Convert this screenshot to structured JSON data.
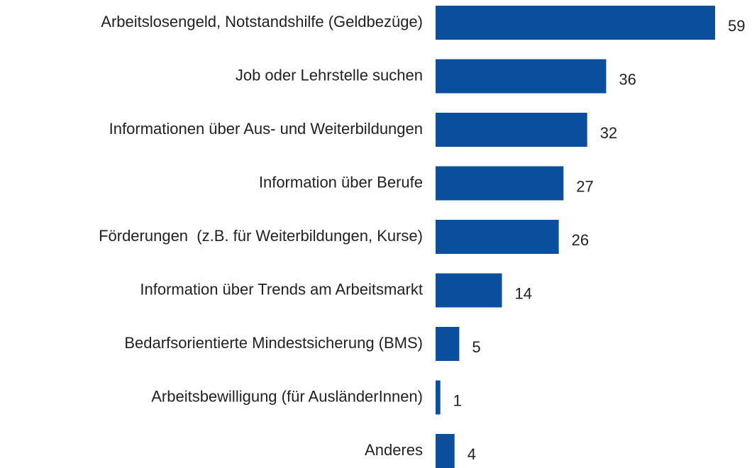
{
  "chart_data": {
    "type": "bar",
    "orientation": "horizontal",
    "categories": [
      "Arbeitslosengeld, Notstandshilfe (Geldbezüge)",
      "Job oder Lehrstelle suchen",
      "Informationen über Aus- und Weiterbildungen",
      "Information über Berufe",
      "Förderungen  (z.B. für Weiterbildungen, Kurse)",
      "Information über Trends am Arbeitsmarkt",
      "Bedarfsorientierte Mindestsicherung (BMS)",
      "Arbeitsbewilligung (für AusländerInnen)",
      "Anderes"
    ],
    "values": [
      59,
      36,
      32,
      27,
      26,
      14,
      5,
      1,
      4
    ],
    "color": "#0a4f9e"
  }
}
